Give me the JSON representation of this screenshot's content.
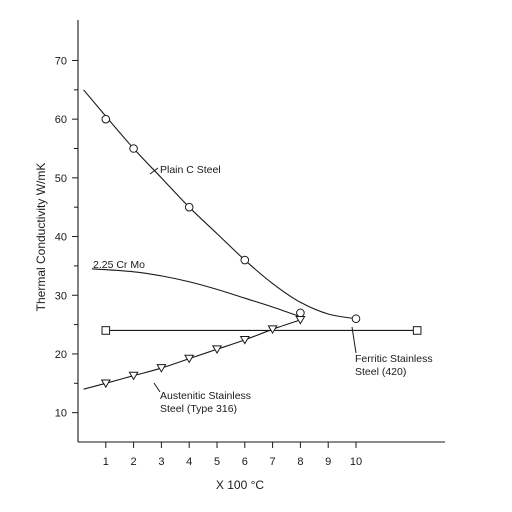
{
  "chart_data": {
    "type": "line",
    "xlabel": "X 100 °C",
    "ylabel": "Thermal Conductivity W/mK",
    "xlim": [
      0,
      13
    ],
    "ylim": [
      5,
      75
    ],
    "x_ticks": [
      1,
      2,
      3,
      4,
      5,
      6,
      7,
      8,
      9,
      10
    ],
    "y_ticks": [
      10,
      20,
      30,
      40,
      50,
      60,
      70
    ],
    "grid": false,
    "legend": "none",
    "series": [
      {
        "name": "Plain C Steel",
        "marker": "circle",
        "points": [
          [
            1,
            60
          ],
          [
            2,
            55
          ],
          [
            4,
            45
          ],
          [
            6,
            36
          ],
          [
            8,
            27
          ],
          [
            10,
            26
          ]
        ],
        "curve": [
          [
            0.2,
            65
          ],
          [
            1,
            60.5
          ],
          [
            2,
            55
          ],
          [
            3,
            50
          ],
          [
            4,
            45
          ],
          [
            5,
            40.5
          ],
          [
            6,
            36
          ],
          [
            7,
            32
          ],
          [
            8,
            28.8
          ],
          [
            9,
            26.8
          ],
          [
            10,
            26
          ]
        ]
      },
      {
        "name": "2.25 Cr Mo",
        "marker": "none",
        "points": [],
        "curve": [
          [
            0.5,
            34.5
          ],
          [
            2,
            34
          ],
          [
            3,
            33.3
          ],
          [
            4,
            32.3
          ],
          [
            5,
            31
          ],
          [
            6,
            29.5
          ],
          [
            7,
            28
          ],
          [
            7.9,
            26.5
          ]
        ]
      },
      {
        "name": "Ferritic Stainless Steel (420)",
        "marker": "square",
        "points": [
          [
            1,
            24
          ],
          [
            12.2,
            24
          ]
        ],
        "curve": [
          [
            1,
            24
          ],
          [
            12.2,
            24
          ]
        ]
      },
      {
        "name": "Austenitic Stainless Steel (Type 316)",
        "marker": "triangle-down",
        "points": [
          [
            1,
            15
          ],
          [
            2,
            16.3
          ],
          [
            3,
            17.6
          ],
          [
            4,
            19.2
          ],
          [
            5,
            20.8
          ],
          [
            6,
            22.4
          ],
          [
            7,
            24.2
          ],
          [
            8,
            25.8
          ]
        ],
        "curve": [
          [
            0.2,
            14
          ],
          [
            1,
            15
          ],
          [
            2,
            16.3
          ],
          [
            3,
            17.6
          ],
          [
            4,
            19.2
          ],
          [
            5,
            20.8
          ],
          [
            6,
            22.4
          ],
          [
            7,
            24.2
          ],
          [
            8,
            25.8
          ]
        ]
      }
    ],
    "annotations": {
      "plain_c": "Plain C Steel",
      "crmo": "2.25 Cr Mo",
      "ferritic_1": "Ferritic Stainless",
      "ferritic_2": "Steel (420)",
      "austenitic_1": "Austenitic Stainless",
      "austenitic_2": "Steel (Type 316)"
    },
    "colors": {
      "ink": "#1a1a1a",
      "background": "#ffffff"
    }
  }
}
